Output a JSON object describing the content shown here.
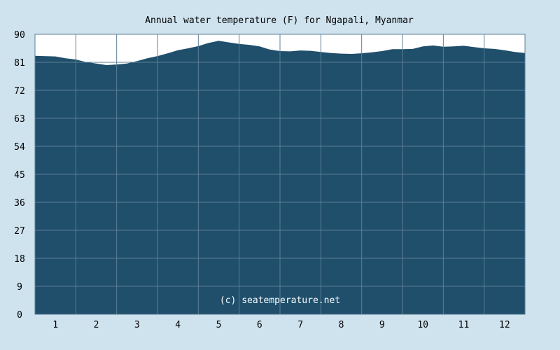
{
  "chart_data": {
    "type": "area",
    "title": "Annual water temperature (F) for Ngapali, Myanmar",
    "credit": "(c) seatemperature.net",
    "xlabel": "",
    "ylabel": "",
    "x_ticks": [
      "1",
      "2",
      "3",
      "4",
      "5",
      "6",
      "7",
      "8",
      "9",
      "10",
      "11",
      "12"
    ],
    "y_ticks": [
      "0",
      "9",
      "18",
      "27",
      "36",
      "45",
      "54",
      "63",
      "72",
      "81",
      "90"
    ],
    "xlim": [
      0.5,
      12.5
    ],
    "ylim": [
      0,
      90
    ],
    "grid": true,
    "series": [
      {
        "x": [
          0.5,
          1.0,
          1.25,
          1.5,
          1.75,
          2.0,
          2.25,
          2.5,
          2.75,
          3.0,
          3.25,
          3.5,
          3.75,
          4.0,
          4.25,
          4.5,
          4.75,
          5.0,
          5.25,
          5.5,
          5.75,
          6.0,
          6.25,
          6.5,
          6.75,
          7.0,
          7.25,
          7.5,
          7.75,
          8.0,
          8.25,
          8.5,
          8.75,
          9.0,
          9.25,
          9.5,
          9.75,
          10.0,
          10.25,
          10.5,
          10.75,
          11.0,
          11.25,
          11.5,
          11.75,
          12.0,
          12.25,
          12.5
        ],
        "values": [
          83.1,
          82.9,
          82.3,
          81.9,
          81.1,
          80.6,
          80.1,
          80.3,
          80.6,
          81.4,
          82.3,
          83.0,
          83.9,
          84.9,
          85.5,
          86.2,
          87.2,
          87.9,
          87.4,
          86.9,
          86.6,
          86.1,
          85.1,
          84.6,
          84.5,
          84.8,
          84.7,
          84.3,
          84.0,
          83.8,
          83.7,
          83.9,
          84.2,
          84.6,
          85.2,
          85.2,
          85.3,
          86.1,
          86.4,
          86.0,
          86.1,
          86.3,
          85.9,
          85.5,
          85.3,
          84.9,
          84.3,
          84.0
        ]
      }
    ],
    "colors": {
      "fill": "#1f4f6b",
      "grid": "#5d7f96",
      "background": "#cfe3ef",
      "credit": "#ffffff"
    }
  }
}
